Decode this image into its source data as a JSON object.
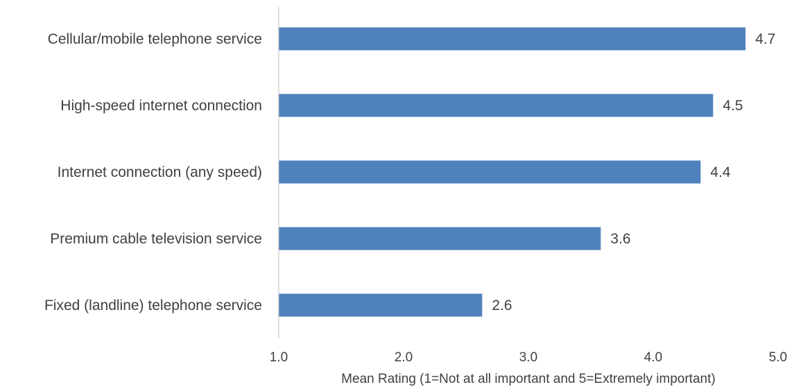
{
  "chart_data": {
    "type": "bar",
    "orientation": "horizontal",
    "categories": [
      "Cellular/mobile telephone service",
      "High-speed internet connection",
      "Internet connection (any speed)",
      "Premium cable television service",
      "Fixed (landline) telephone service"
    ],
    "values": [
      4.74,
      4.48,
      4.38,
      3.58,
      2.63
    ],
    "data_labels": [
      "4.7",
      "4.5",
      "4.4",
      "3.6",
      "2.6"
    ],
    "xlim": [
      1.0,
      5.0
    ],
    "x_ticks": [
      "1.0",
      "2.0",
      "3.0",
      "4.0",
      "5.0"
    ],
    "xlabel": "Mean Rating (1=Not at all important and 5=Extremely important)",
    "ylabel": "",
    "title": "",
    "grid": false,
    "legend": "none",
    "bar_color": "#4f81bd"
  }
}
